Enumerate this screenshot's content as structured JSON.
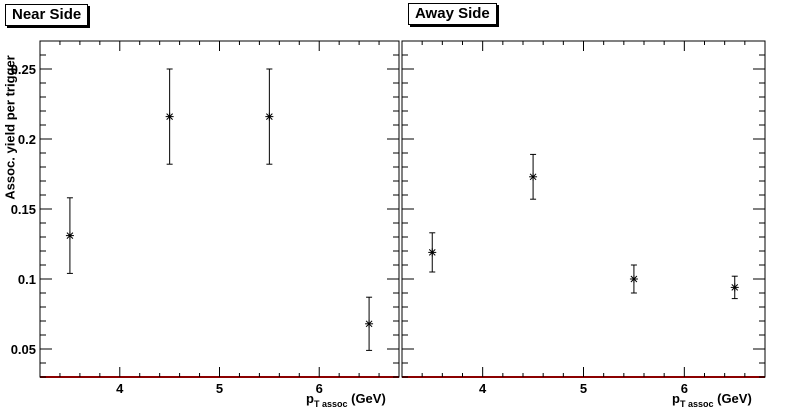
{
  "chart_data": [
    {
      "type": "scatter",
      "title": "Near Side",
      "ylabel": "Assoc. yield per trigger",
      "xlabel_main": "p",
      "xlabel_sub": "T assoc",
      "xlabel_unit": "(GeV)",
      "xlim": [
        3.2,
        6.8
      ],
      "ylim": [
        0.03,
        0.27
      ],
      "x_ticks": [
        4,
        5,
        6
      ],
      "y_ticks": [
        0.05,
        0.1,
        0.15,
        0.2,
        0.25
      ],
      "y_tick_labels": [
        "0.05",
        "0.1",
        "0.15",
        "0.2",
        "0.25"
      ],
      "grid": false,
      "series": [
        {
          "points": [
            {
              "x": 3.5,
              "y": 0.131,
              "err": 0.027
            },
            {
              "x": 4.5,
              "y": 0.216,
              "err": 0.034
            },
            {
              "x": 5.5,
              "y": 0.216,
              "err": 0.034
            },
            {
              "x": 6.5,
              "y": 0.068,
              "err": 0.019
            }
          ]
        }
      ]
    },
    {
      "type": "scatter",
      "title": "Away Side",
      "xlabel_main": "p",
      "xlabel_sub": "T assoc",
      "xlabel_unit": "(GeV)",
      "xlim": [
        3.2,
        6.8
      ],
      "ylim": [
        0.03,
        0.27
      ],
      "x_ticks": [
        4,
        5,
        6
      ],
      "y_ticks": [
        0.05,
        0.1,
        0.15,
        0.2,
        0.25
      ],
      "y_tick_labels": [],
      "grid": false,
      "series": [
        {
          "points": [
            {
              "x": 3.5,
              "y": 0.119,
              "err": 0.014
            },
            {
              "x": 4.5,
              "y": 0.173,
              "err": 0.016
            },
            {
              "x": 5.5,
              "y": 0.1,
              "err": 0.01
            },
            {
              "x": 6.5,
              "y": 0.094,
              "err": 0.008
            }
          ]
        }
      ]
    }
  ]
}
